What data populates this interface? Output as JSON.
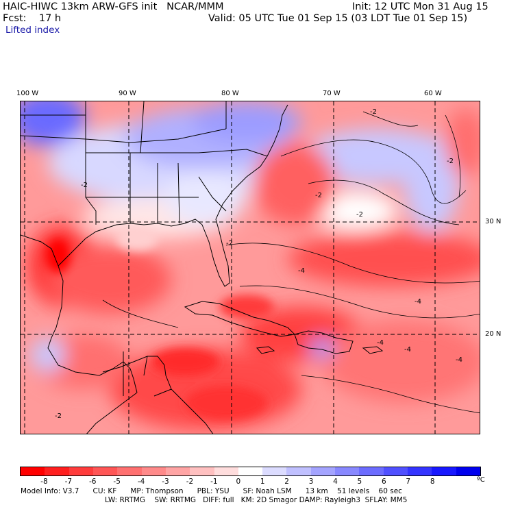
{
  "header": {
    "model_line": "HAIC-HIWC 13km ARW-GFS init   NCAR/MMM",
    "init_line": "Init: 12 UTC Mon 31 Aug 15",
    "fcst_line": "Fcst:    17 h",
    "valid_line": "Valid: 05 UTC Tue 01 Sep 15 (03 LDT Tue 01 Sep 15)",
    "field_name": "Lifted index"
  },
  "map": {
    "lon_labels": [
      "100 W",
      "90 W",
      "80 W",
      "70 W",
      "60 W"
    ],
    "lat_labels": [
      "30 N",
      "20 N"
    ],
    "contour_labels": [
      "-2",
      "-2",
      "-2",
      "-2",
      "-2",
      "-2",
      "-2",
      "-4",
      "-4",
      "-4",
      "-4",
      "-4"
    ],
    "colors": {
      "land_outline": "#000000",
      "grid_dash": "#000000",
      "contour": "#000000"
    }
  },
  "colorbar": {
    "colors": [
      "#ff0000",
      "#ff1f1f",
      "#ff3c3c",
      "#ff5656",
      "#ff7070",
      "#ff8a8a",
      "#ffa4a4",
      "#ffc0c0",
      "#ffdddd",
      "#ffffff",
      "#dcdcff",
      "#c0c0ff",
      "#a4a4ff",
      "#8888ff",
      "#6c6cff",
      "#5050ff",
      "#3434ff",
      "#1818ff",
      "#0000ee"
    ],
    "labels": [
      "-8",
      "-7",
      "-6",
      "-5",
      "-4",
      "-3",
      "-2",
      "-1",
      "0",
      "1",
      "2",
      "3",
      "4",
      "5",
      "6",
      "7",
      "8"
    ],
    "units": "ºC"
  },
  "footer": {
    "line1": "Model Info: V3.7      CU: KF      MP: Thompson      PBL: YSU      SF: Noah LSM      13 km    51 levels    60 sec",
    "line2": "LW: RRTMG    SW: RRTMG   DIFF: full   KM: 2D Smagor DAMP: Rayleigh3  SFLAY: MM5"
  }
}
